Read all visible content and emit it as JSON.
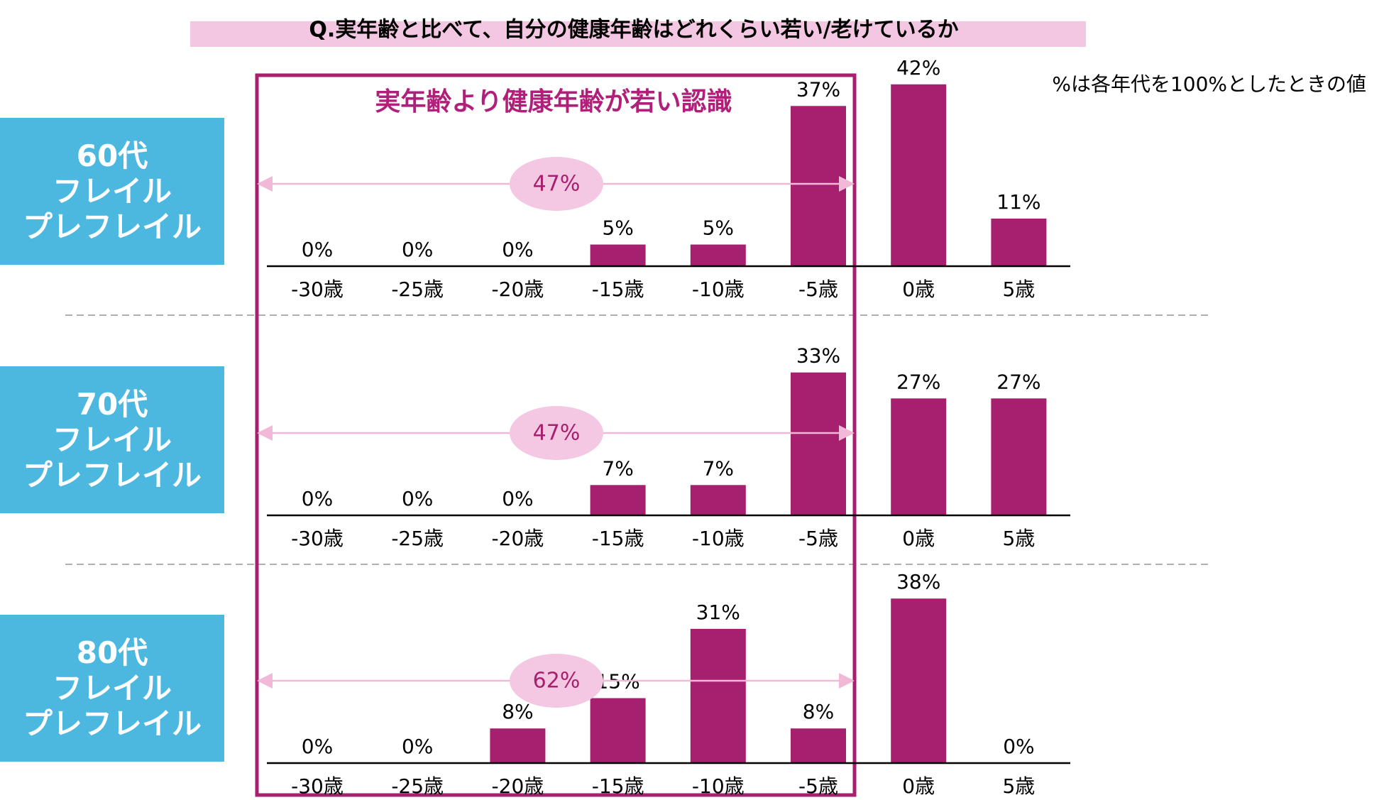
{
  "title": "Q.実年齢と比べて、自分の健康年齢はどれくらい若い/老けているか",
  "note": "%は各年代を100%としたときの値",
  "highlight_label": "実年齢より健康年齢が若い認識",
  "colors": {
    "bar": "#a6206f",
    "title_band": "#f3c7e1",
    "panel_label_bg": "#4cb8e0",
    "highlight_border": "#a6206f",
    "highlight_text": "#b0207a",
    "bracket": "#f2b8d8",
    "bracket_bubble": "#f4c8e2",
    "bubble_text": "#a6206f"
  },
  "chart_data": [
    {
      "type": "bar",
      "panel_label": [
        "60代",
        "フレイル",
        "プレフレイル"
      ],
      "categories": [
        "-30歳",
        "-25歳",
        "-20歳",
        "-15歳",
        "-10歳",
        "-5歳",
        "0歳",
        "5歳"
      ],
      "values": [
        0,
        0,
        0,
        5,
        5,
        37,
        42,
        11
      ],
      "value_labels": [
        "0%",
        "0%",
        "0%",
        "5%",
        "5%",
        "37%",
        "42%",
        "11%"
      ],
      "bracket_total": "47%",
      "ylim": [
        0,
        45
      ]
    },
    {
      "type": "bar",
      "panel_label": [
        "70代",
        "フレイル",
        "プレフレイル"
      ],
      "categories": [
        "-30歳",
        "-25歳",
        "-20歳",
        "-15歳",
        "-10歳",
        "-5歳",
        "0歳",
        "5歳"
      ],
      "values": [
        0,
        0,
        0,
        7,
        7,
        33,
        27,
        27
      ],
      "value_labels": [
        "0%",
        "0%",
        "0%",
        "7%",
        "7%",
        "33%",
        "27%",
        "27%"
      ],
      "bracket_total": "47%",
      "ylim": [
        0,
        45
      ]
    },
    {
      "type": "bar",
      "panel_label": [
        "80代",
        "フレイル",
        "プレフレイル"
      ],
      "categories": [
        "-30歳",
        "-25歳",
        "-20歳",
        "-15歳",
        "-10歳",
        "-5歳",
        "0歳",
        "5歳"
      ],
      "values": [
        0,
        0,
        8,
        15,
        31,
        8,
        38,
        0
      ],
      "value_labels": [
        "0%",
        "0%",
        "8%",
        "15%",
        "31%",
        "8%",
        "38%",
        "0%"
      ],
      "bracket_total": "62%",
      "ylim": [
        0,
        45
      ]
    }
  ]
}
